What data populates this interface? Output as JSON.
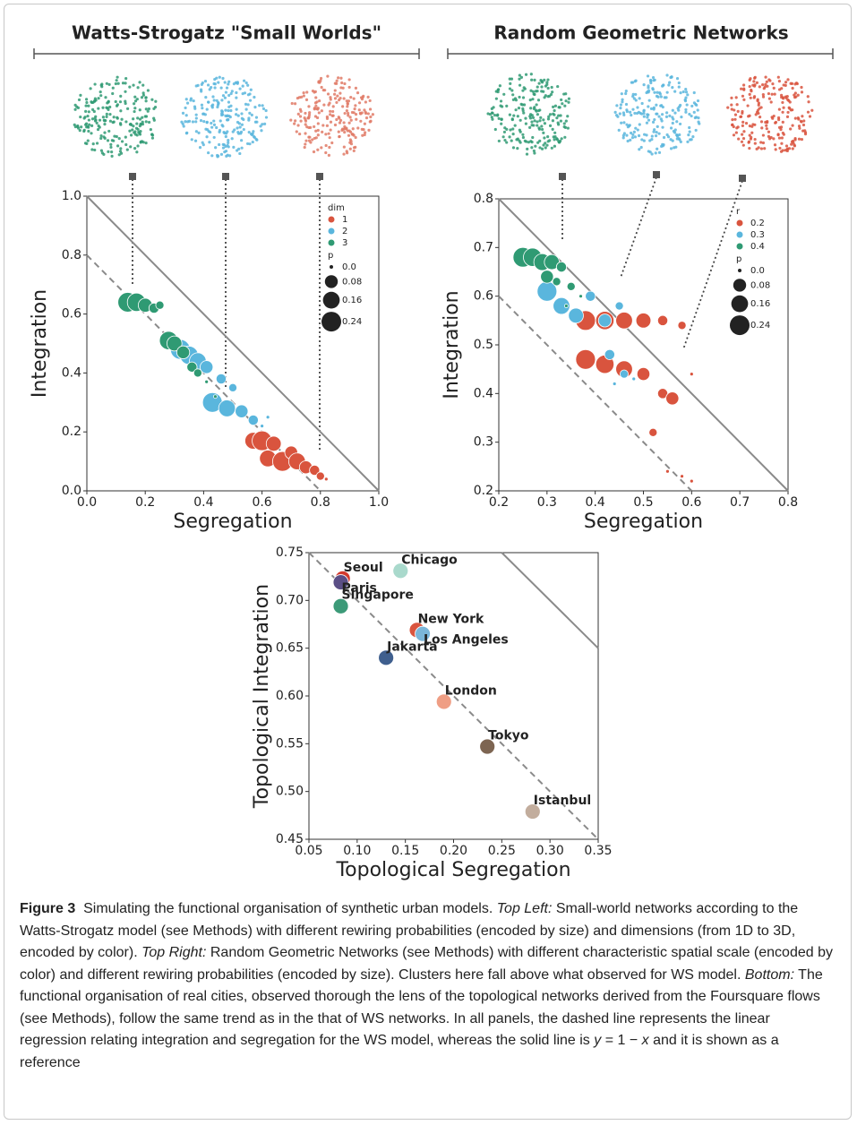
{
  "headers": [
    "Watts-Strogatz \"Small Worlds\"",
    "Random Geometric Networks"
  ],
  "chart_data": [
    {
      "type": "scatter",
      "xlabel": "Segregation",
      "ylabel": "Integration",
      "xlim": [
        0,
        1
      ],
      "ylim": [
        0,
        1
      ],
      "xticks": [
        {
          "value": 0,
          "label": "0.0"
        },
        0.2,
        0.4,
        0.6,
        0.8,
        {
          "value": 1,
          "label": "1.0"
        }
      ],
      "yticks": [
        {
          "value": 0,
          "label": "0.0"
        },
        0.2,
        0.4,
        0.6,
        0.8,
        {
          "value": 1,
          "label": "1.0"
        }
      ],
      "legend_title": "dim",
      "series": [
        {
          "name": "1",
          "color": "#d9543e",
          "x": [
            0.57,
            0.6,
            0.62,
            0.64,
            0.67,
            0.7,
            0.72,
            0.75,
            0.78,
            0.8,
            0.82
          ],
          "values": [
            0.17,
            0.17,
            0.11,
            0.16,
            0.1,
            0.13,
            0.1,
            0.08,
            0.07,
            0.05,
            0.04
          ],
          "sizes": [
            0.16,
            0.24,
            0.16,
            0.12,
            0.24,
            0.08,
            0.16,
            0.08,
            0.04,
            0.02,
            0.0
          ]
        },
        {
          "name": "2",
          "color": "#5ab6dd",
          "x": [
            0.32,
            0.35,
            0.38,
            0.41,
            0.43,
            0.46,
            0.48,
            0.5,
            0.53,
            0.57,
            0.6,
            0.62
          ],
          "values": [
            0.48,
            0.46,
            0.44,
            0.42,
            0.3,
            0.38,
            0.28,
            0.35,
            0.27,
            0.24,
            0.22,
            0.25
          ],
          "sizes": [
            0.24,
            0.2,
            0.16,
            0.08,
            0.24,
            0.04,
            0.16,
            0.02,
            0.08,
            0.04,
            0.0,
            0.0
          ]
        },
        {
          "name": "3",
          "color": "#2f9a73",
          "x": [
            0.14,
            0.17,
            0.2,
            0.23,
            0.25,
            0.28,
            0.3,
            0.33,
            0.36,
            0.38,
            0.41,
            0.44
          ],
          "values": [
            0.64,
            0.64,
            0.63,
            0.62,
            0.63,
            0.51,
            0.5,
            0.47,
            0.42,
            0.4,
            0.37,
            0.32
          ],
          "sizes": [
            0.24,
            0.2,
            0.1,
            0.04,
            0.02,
            0.2,
            0.12,
            0.08,
            0.04,
            0.02,
            0.0,
            0.0
          ]
        }
      ],
      "size_legend": {
        "title": "p",
        "values": [
          {
            "value": 0,
            "label": "0.0"
          },
          0.08,
          0.16,
          0.24
        ]
      },
      "lines": [
        {
          "style": "solid",
          "intercept": 1,
          "slope": -1
        },
        {
          "style": "dashed",
          "intercept": 0.8,
          "slope": -1
        }
      ]
    },
    {
      "type": "scatter",
      "xlabel": "Segregation",
      "ylabel": "Integration",
      "xlim": [
        0.2,
        0.8
      ],
      "ylim": [
        0.2,
        0.8
      ],
      "xticks": [
        0.2,
        0.3,
        0.4,
        0.5,
        0.6,
        0.7,
        0.8
      ],
      "yticks": [
        0.2,
        0.3,
        0.4,
        0.5,
        0.6,
        0.7,
        0.8
      ],
      "legend_title": "r",
      "series": [
        {
          "name": "0.2",
          "color": "#d9543e",
          "x": [
            0.38,
            0.42,
            0.46,
            0.5,
            0.54,
            0.58,
            0.38,
            0.42,
            0.46,
            0.5,
            0.54,
            0.56,
            0.6,
            0.52,
            0.55,
            0.58,
            0.6
          ],
          "values": [
            0.55,
            0.55,
            0.55,
            0.55,
            0.55,
            0.54,
            0.47,
            0.46,
            0.45,
            0.44,
            0.4,
            0.39,
            0.44,
            0.32,
            0.24,
            0.23,
            0.22
          ],
          "sizes": [
            0.24,
            0.2,
            0.16,
            0.12,
            0.04,
            0.02,
            0.24,
            0.2,
            0.16,
            0.08,
            0.04,
            0.08,
            0.0,
            0.02,
            0.0,
            0.0,
            0.0
          ]
        },
        {
          "name": "0.3",
          "color": "#5ab6dd",
          "x": [
            0.3,
            0.33,
            0.36,
            0.39,
            0.42,
            0.45,
            0.43,
            0.46,
            0.48,
            0.44
          ],
          "values": [
            0.61,
            0.58,
            0.56,
            0.6,
            0.55,
            0.58,
            0.48,
            0.44,
            0.43,
            0.42
          ],
          "sizes": [
            0.24,
            0.16,
            0.12,
            0.04,
            0.08,
            0.02,
            0.04,
            0.02,
            0.0,
            0.0
          ]
        },
        {
          "name": "0.4",
          "color": "#2f9a73",
          "x": [
            0.25,
            0.27,
            0.29,
            0.31,
            0.33,
            0.3,
            0.32,
            0.35,
            0.37,
            0.34
          ],
          "values": [
            0.68,
            0.68,
            0.67,
            0.67,
            0.66,
            0.64,
            0.63,
            0.62,
            0.6,
            0.58
          ],
          "sizes": [
            0.24,
            0.2,
            0.16,
            0.12,
            0.04,
            0.08,
            0.02,
            0.02,
            0.0,
            0.0
          ]
        }
      ],
      "size_legend": {
        "title": "p",
        "values": [
          {
            "value": 0,
            "label": "0.0"
          },
          0.08,
          0.16,
          0.24
        ]
      },
      "lines": [
        {
          "style": "solid",
          "intercept": 1,
          "slope": -1
        },
        {
          "style": "dashed",
          "intercept": 0.8,
          "slope": -1
        }
      ]
    },
    {
      "type": "labeled-scatter",
      "xlabel": "Topological Segregation",
      "ylabel": "Topological Integration",
      "xlim": [
        0.05,
        0.35
      ],
      "ylim": [
        0.45,
        0.75
      ],
      "xticks": [
        0.05,
        {
          "value": 0.1,
          "label": "0.10"
        },
        0.15,
        {
          "value": 0.2,
          "label": "0.20"
        },
        0.25,
        {
          "value": 0.3,
          "label": "0.30"
        },
        0.35
      ],
      "yticks": [
        0.45,
        {
          "value": 0.5,
          "label": "0.50"
        },
        0.55,
        {
          "value": 0.6,
          "label": "0.60"
        },
        0.65,
        {
          "value": 0.7,
          "label": "0.70"
        },
        0.75
      ],
      "categories": [
        "Seoul",
        "Paris",
        "Chicago",
        "Singapore",
        "New York",
        "Los Angeles",
        "Jakarta",
        "London",
        "Tokyo",
        "Istanbul"
      ],
      "x": [
        0.085,
        0.083,
        0.145,
        0.083,
        0.162,
        0.168,
        0.13,
        0.19,
        0.235,
        0.282
      ],
      "values": [
        0.723,
        0.719,
        0.731,
        0.694,
        0.669,
        0.665,
        0.64,
        0.594,
        0.547,
        0.479
      ],
      "colors": [
        "#d23a2e",
        "#5b4f86",
        "#a9d9cc",
        "#3c9a78",
        "#d9553f",
        "#7bb6d9",
        "#3f5f8e",
        "#ef9e84",
        "#7d6552",
        "#c2ad9d"
      ],
      "lines": [
        {
          "style": "solid",
          "intercept": 1,
          "slope": -1
        },
        {
          "style": "dashed",
          "intercept": 0.8,
          "slope": -1
        }
      ]
    }
  ],
  "caption": [
    {
      "text": "Figure 3",
      "style": "bold"
    },
    {
      "text": "  Simulating the functional organisation of synthetic urban models. ",
      "style": "normal"
    },
    {
      "text": "Top Left:",
      "style": "italic"
    },
    {
      "text": " Small-world networks according to the Watts-Strogatz model (see Methods) with different rewiring probabilities (encoded by size) and dimensions (from 1D to 3D, encoded by color). ",
      "style": "normal"
    },
    {
      "text": "Top Right:",
      "style": "italic"
    },
    {
      "text": " Random Geometric Networks (see Methods) with different characteristic spatial scale (encoded by color) and different rewiring probabilities (encoded by size). Clusters here fall above what observed for WS model. ",
      "style": "normal"
    },
    {
      "text": "Bottom:",
      "style": "italic"
    },
    {
      "text": " The functional organisation of real cities, observed thorough the lens of the topological networks derived from the Foursquare flows (see Methods), follow the same trend as in the that of WS networks. In all panels, the dashed line represents the linear regression relating integration and segregation for the WS model, whereas the solid line is ",
      "style": "normal"
    },
    {
      "text": "y",
      "style": "italic"
    },
    {
      "text": " = 1 − ",
      "style": "normal"
    },
    {
      "text": "x",
      "style": "italic"
    },
    {
      "text": " and it is shown as a reference",
      "style": "normal"
    }
  ]
}
